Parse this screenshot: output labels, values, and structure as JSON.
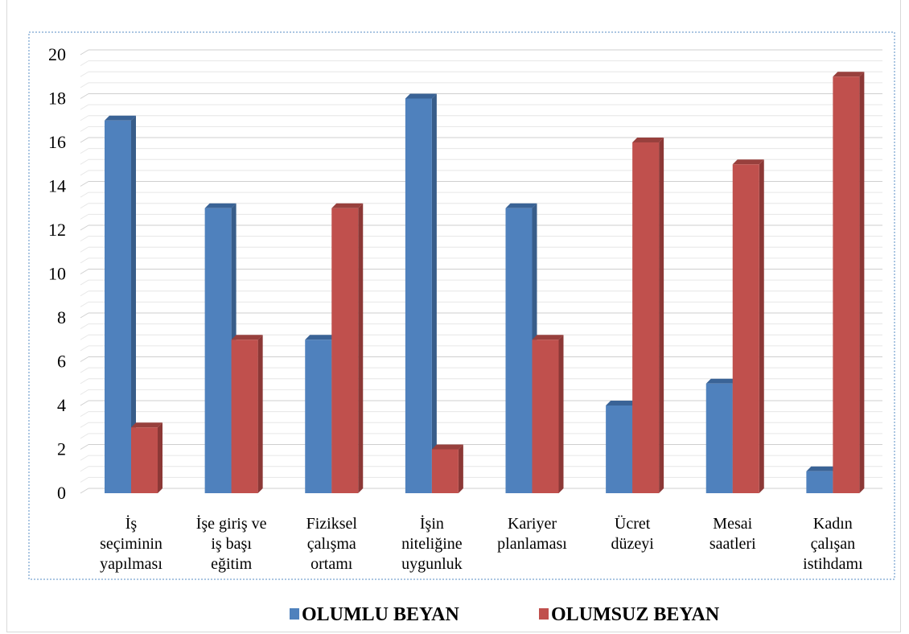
{
  "chart_data": {
    "type": "bar",
    "title": "",
    "xlabel": "",
    "ylabel": "",
    "ylim": [
      0,
      20
    ],
    "yticks": [
      0,
      2,
      4,
      6,
      8,
      10,
      12,
      14,
      16,
      18,
      20
    ],
    "grid": true,
    "legend_position": "bottom",
    "categories": [
      [
        "İş",
        "seçiminin",
        "yapılması"
      ],
      [
        "İşe giriş ve",
        "iş başı",
        "eğitim"
      ],
      [
        "Fiziksel",
        "çalışma",
        "ortamı"
      ],
      [
        "İşin",
        "niteliğine",
        "uygunluk"
      ],
      [
        "Kariyer",
        "planlaması"
      ],
      [
        "Ücret",
        "düzeyi"
      ],
      [
        "Mesai",
        "saatleri"
      ],
      [
        "Kadın",
        "çalışan",
        "istihdamı"
      ]
    ],
    "series": [
      {
        "name": "OLUMLU BEYAN",
        "color": "#4f81bd",
        "side_color": "#385d8a",
        "top_color": "#3a6396",
        "values": [
          17,
          13,
          7,
          18,
          13,
          4,
          5,
          1
        ]
      },
      {
        "name": "OLUMSUZ BEYAN",
        "color": "#c0504d",
        "side_color": "#8c3836",
        "top_color": "#98403d",
        "values": [
          3,
          7,
          13,
          2,
          7,
          16,
          15,
          19
        ]
      }
    ]
  }
}
